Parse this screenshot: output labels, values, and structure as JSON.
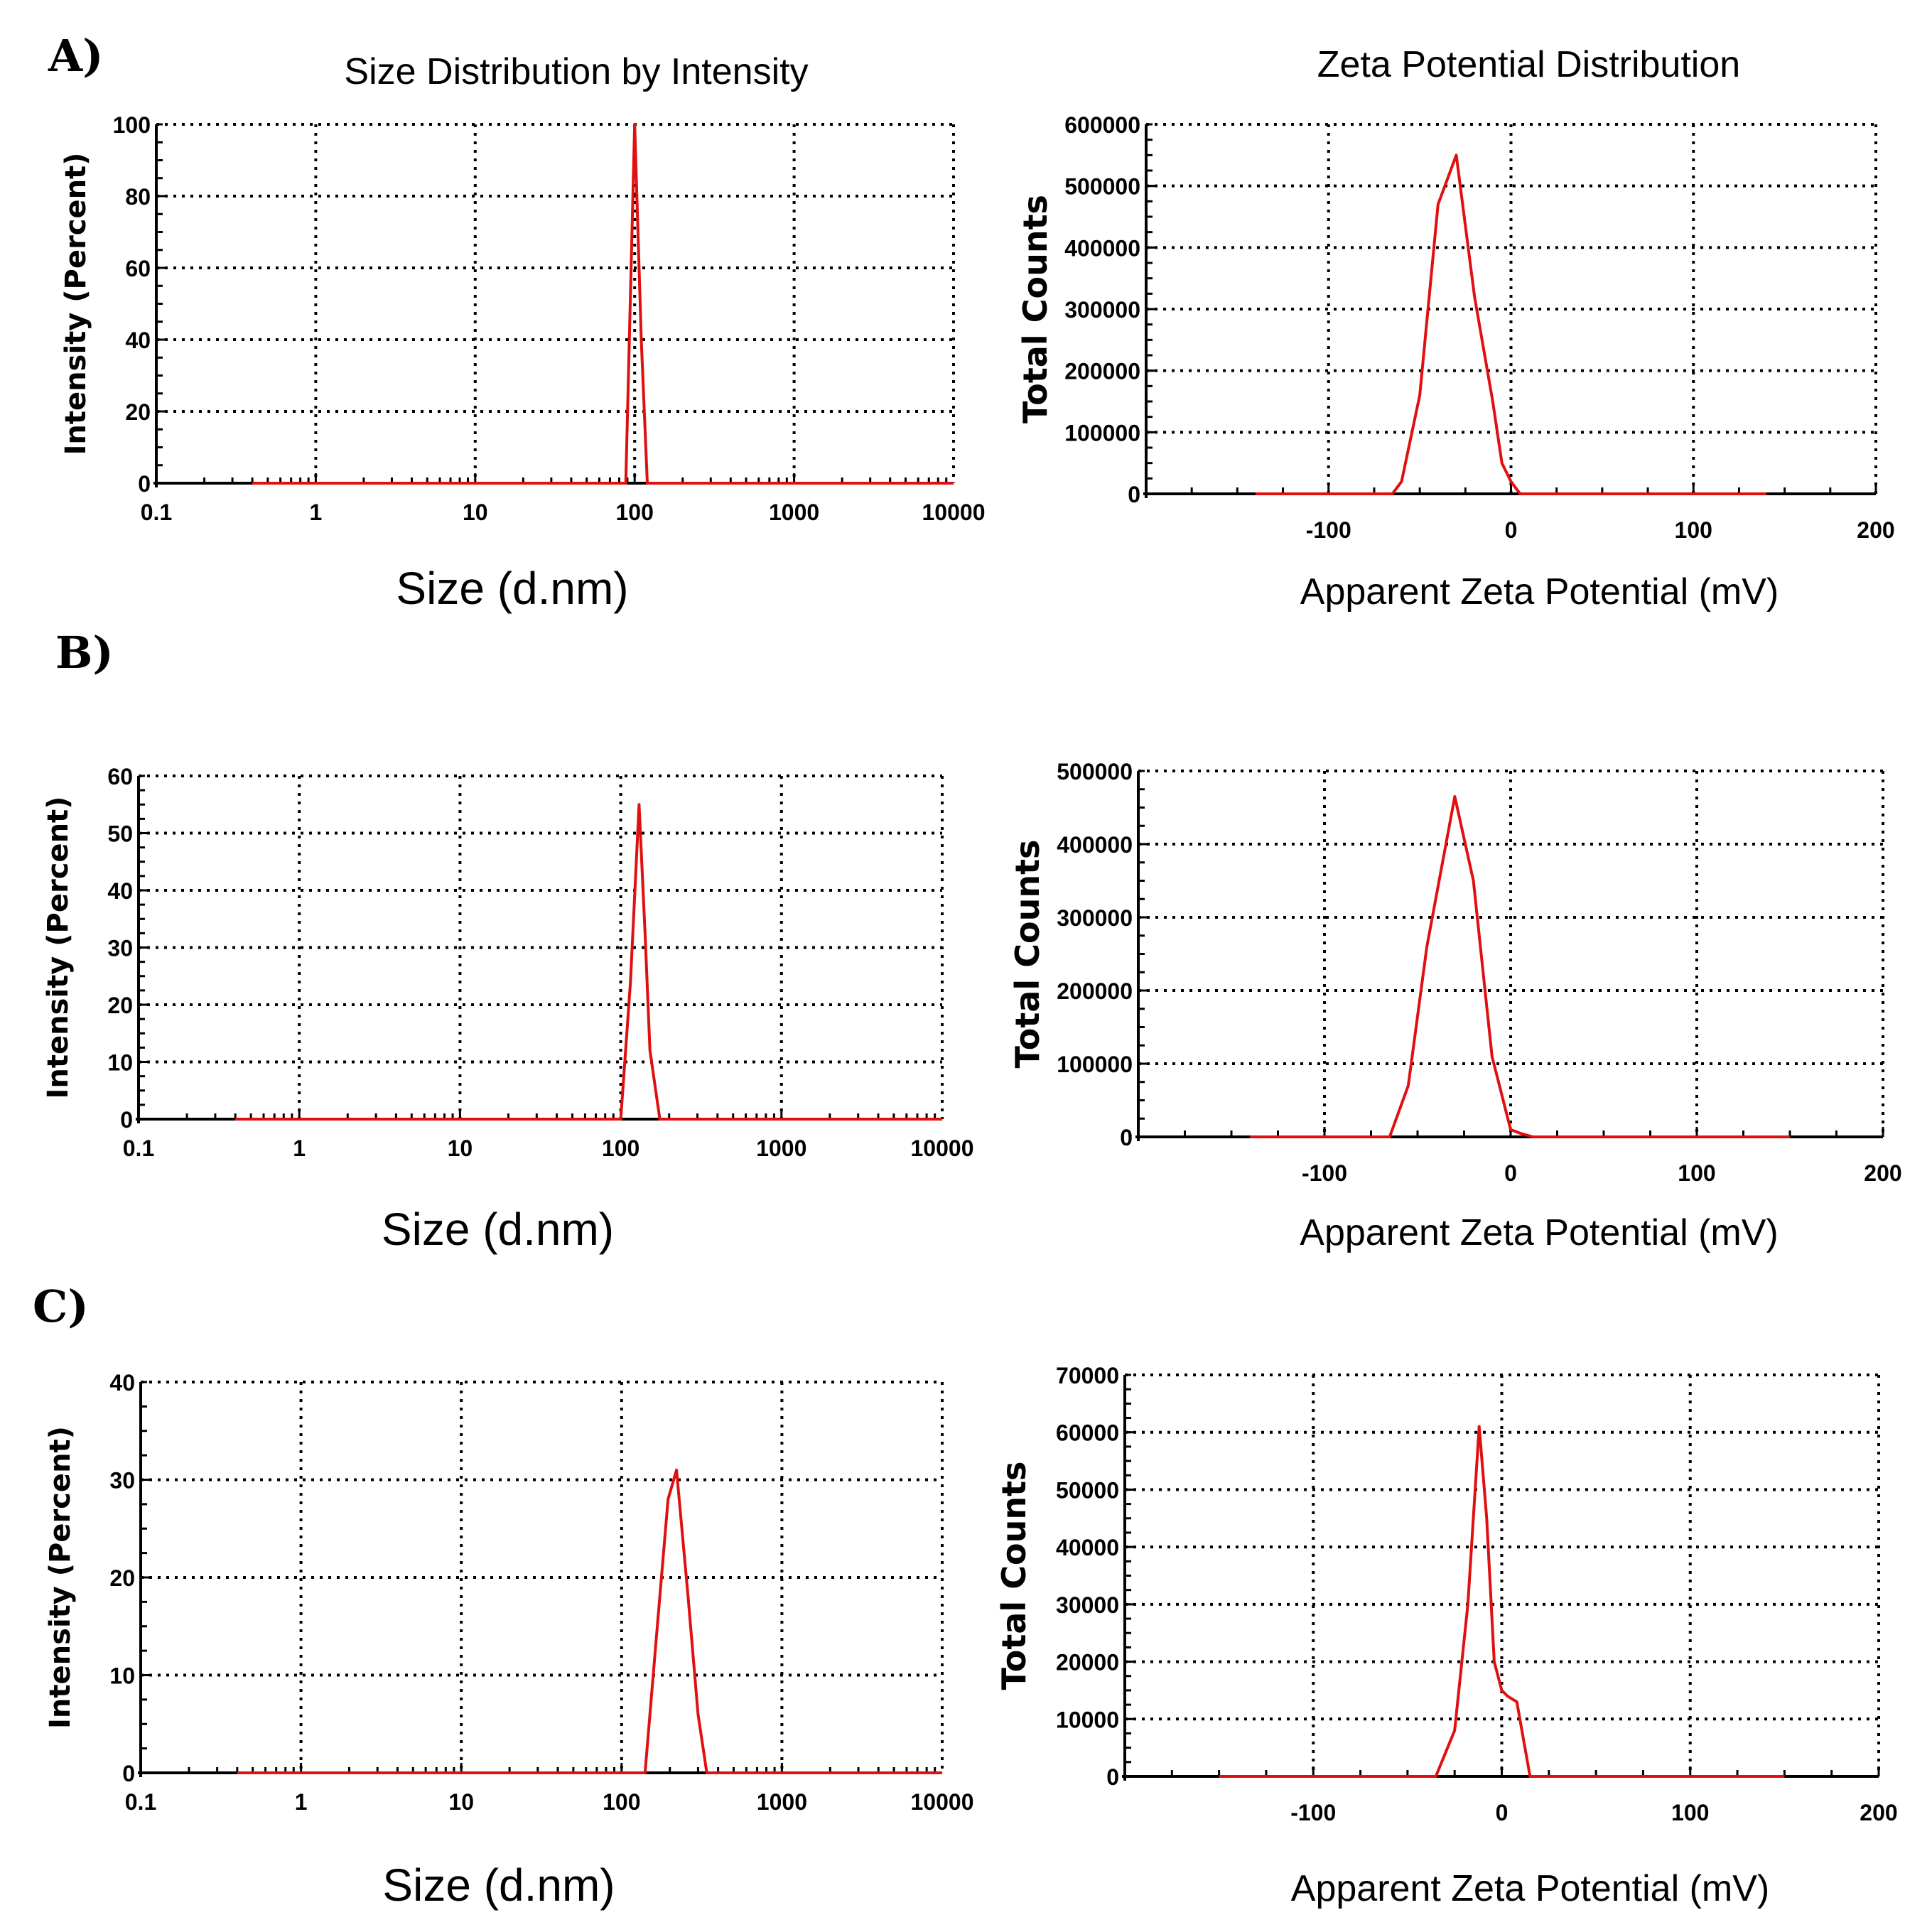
{
  "panels": [
    {
      "label": "A)"
    },
    {
      "label": "B)"
    },
    {
      "label": "C)"
    }
  ],
  "colors": {
    "series": "#e01010",
    "axis": "#000000"
  },
  "chart_data": [
    {
      "id": "A-size",
      "type": "line",
      "title": "Size Distribution by Intensity",
      "xlabel": "Size (d.nm)",
      "ylabel": "Intensity (Percent)",
      "xscale": "log",
      "xlim": [
        0.1,
        10000
      ],
      "ylim": [
        0,
        100
      ],
      "xticks": [
        0.1,
        1,
        10,
        100,
        1000,
        10000
      ],
      "xtick_labels": [
        "0.1",
        "1",
        "10",
        "100",
        "1000",
        "10000"
      ],
      "yticks": [
        0,
        20,
        40,
        60,
        80,
        100
      ],
      "ytick_labels": [
        "0",
        "20",
        "40",
        "60",
        "80",
        "100"
      ],
      "series": [
        {
          "name": "Intensity",
          "x": [
            0.4,
            80,
            88,
            100,
            110,
            120,
            10000
          ],
          "y": [
            0,
            0,
            0,
            100,
            40,
            0,
            0
          ]
        }
      ]
    },
    {
      "id": "A-zeta",
      "type": "line",
      "title": "Zeta Potential Distribution",
      "xlabel": "Apparent Zeta Potential (mV)",
      "ylabel": "Total Counts",
      "xscale": "linear",
      "xlim": [
        -200,
        200
      ],
      "ylim": [
        0,
        600000
      ],
      "xticks": [
        -100,
        0,
        100,
        200
      ],
      "xtick_labels": [
        "-100",
        "0",
        "100",
        "200"
      ],
      "yticks": [
        0,
        100000,
        200000,
        300000,
        400000,
        500000,
        600000
      ],
      "ytick_labels": [
        "0",
        "100000",
        "200000",
        "300000",
        "400000",
        "500000",
        "600000"
      ],
      "series": [
        {
          "name": "Counts",
          "x": [
            -140,
            -65,
            -60,
            -50,
            -40,
            -30,
            -20,
            -10,
            -5,
            0,
            5,
            140
          ],
          "y": [
            0,
            0,
            20000,
            160000,
            470000,
            550000,
            320000,
            150000,
            50000,
            20000,
            0,
            0
          ]
        }
      ]
    },
    {
      "id": "B-size",
      "type": "line",
      "title": "",
      "xlabel": "Size (d.nm)",
      "ylabel": "Intensity (Percent)",
      "xscale": "log",
      "xlim": [
        0.1,
        10000
      ],
      "ylim": [
        0,
        60
      ],
      "xticks": [
        0.1,
        1,
        10,
        100,
        1000,
        10000
      ],
      "xtick_labels": [
        "0.1",
        "1",
        "10",
        "100",
        "1000",
        "10000"
      ],
      "yticks": [
        0,
        10,
        20,
        30,
        40,
        50,
        60
      ],
      "ytick_labels": [
        "0",
        "10",
        "20",
        "30",
        "40",
        "50",
        "60"
      ],
      "series": [
        {
          "name": "Intensity",
          "x": [
            0.4,
            100,
            115,
            130,
            142,
            152,
            175,
            10000
          ],
          "y": [
            0,
            0,
            24,
            55,
            32,
            12,
            0,
            0
          ]
        }
      ]
    },
    {
      "id": "B-zeta",
      "type": "line",
      "title": "",
      "xlabel": "Apparent Zeta Potential (mV)",
      "ylabel": "Total Counts",
      "xscale": "linear",
      "xlim": [
        -200,
        200
      ],
      "ylim": [
        0,
        500000
      ],
      "xticks": [
        -100,
        0,
        100,
        200
      ],
      "xtick_labels": [
        "-100",
        "0",
        "100",
        "200"
      ],
      "yticks": [
        0,
        100000,
        200000,
        300000,
        400000,
        500000
      ],
      "ytick_labels": [
        "0",
        "100000",
        "200000",
        "300000",
        "400000",
        "500000"
      ],
      "series": [
        {
          "name": "Counts",
          "x": [
            -140,
            -65,
            -55,
            -45,
            -30,
            -20,
            -10,
            -5,
            0,
            5,
            12,
            150
          ],
          "y": [
            0,
            0,
            70000,
            260000,
            465000,
            350000,
            110000,
            60000,
            10000,
            5000,
            0,
            0
          ]
        }
      ]
    },
    {
      "id": "C-size",
      "type": "line",
      "title": "",
      "xlabel": "Size (d.nm)",
      "ylabel": "Intensity (Percent)",
      "xscale": "log",
      "xlim": [
        0.1,
        10000
      ],
      "ylim": [
        0,
        40
      ],
      "xticks": [
        0.1,
        1,
        10,
        100,
        1000,
        10000
      ],
      "xtick_labels": [
        "0.1",
        "1",
        "10",
        "100",
        "1000",
        "10000"
      ],
      "yticks": [
        0,
        10,
        20,
        30,
        40
      ],
      "ytick_labels": [
        "0",
        "10",
        "20",
        "30",
        "40"
      ],
      "series": [
        {
          "name": "Intensity",
          "x": [
            0.4,
            140,
            165,
            195,
            220,
            260,
            300,
            340,
            10000
          ],
          "y": [
            0,
            0,
            14,
            28,
            31,
            18,
            6,
            0,
            0
          ]
        }
      ]
    },
    {
      "id": "C-zeta",
      "type": "line",
      "title": "",
      "xlabel": "Apparent Zeta Potential (mV)",
      "ylabel": "Total Counts",
      "xscale": "linear",
      "xlim": [
        -200,
        200
      ],
      "ylim": [
        0,
        70000
      ],
      "xticks": [
        -100,
        0,
        100,
        200
      ],
      "xtick_labels": [
        "-100",
        "0",
        "100",
        "200"
      ],
      "yticks": [
        0,
        10000,
        20000,
        30000,
        40000,
        50000,
        60000,
        70000
      ],
      "ytick_labels": [
        "0",
        "10000",
        "20000",
        "30000",
        "40000",
        "50000",
        "60000",
        "70000"
      ],
      "series": [
        {
          "name": "Counts",
          "x": [
            -150,
            -35,
            -25,
            -18,
            -12,
            -8,
            -4,
            0,
            3,
            8,
            15,
            150
          ],
          "y": [
            0,
            0,
            8000,
            30000,
            61000,
            45000,
            20000,
            15000,
            14000,
            13000,
            0,
            0
          ]
        }
      ]
    }
  ]
}
